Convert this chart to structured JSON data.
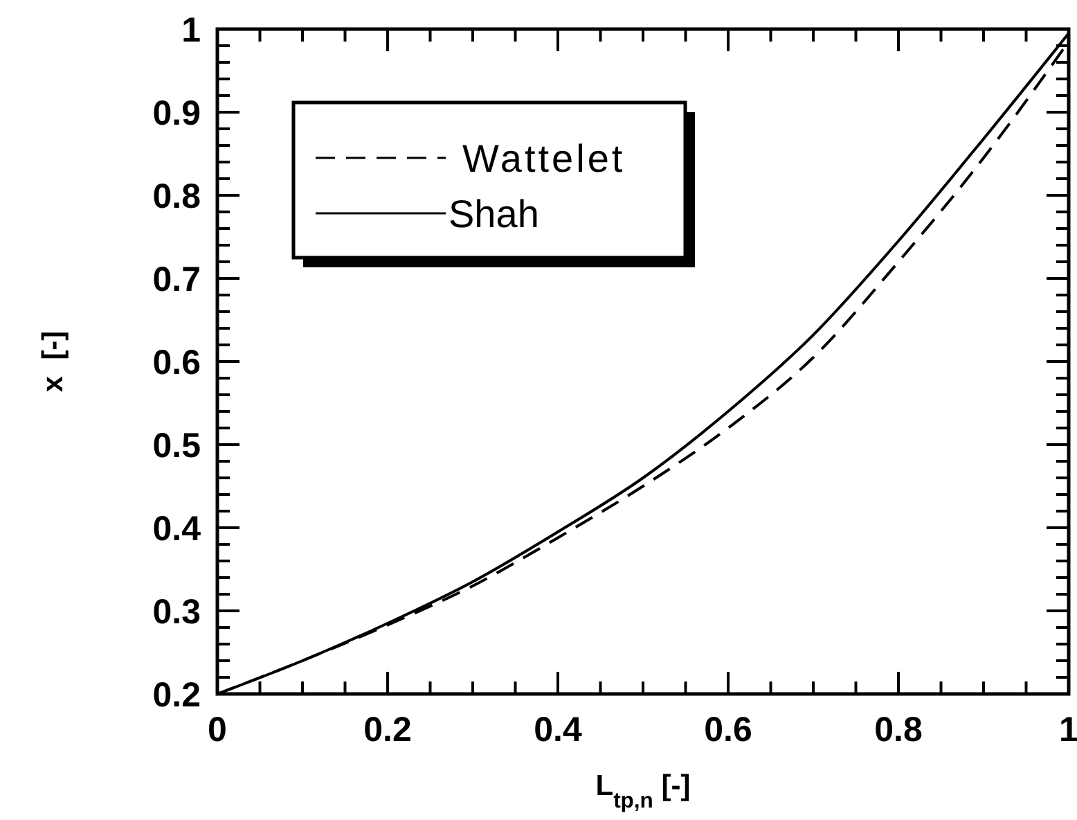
{
  "chart_data": {
    "type": "line",
    "xlabel": "L$_{tp,n}$ [-]",
    "ylabel": "x  [-]",
    "x": [
      0,
      0.1,
      0.2,
      0.3,
      0.4,
      0.5,
      0.6,
      0.7,
      0.8,
      0.9,
      1
    ],
    "series": [
      {
        "name": "Wattelet",
        "color": "#000000",
        "line_style": "dashed",
        "values": [
          0.2,
          0.24,
          0.283,
          0.33,
          0.388,
          0.45,
          0.52,
          0.605,
          0.72,
          0.845,
          0.985
        ]
      },
      {
        "name": "Shah",
        "color": "#000000",
        "line_style": "solid",
        "values": [
          0.2,
          0.24,
          0.285,
          0.335,
          0.395,
          0.46,
          0.54,
          0.632,
          0.745,
          0.868,
          0.995
        ]
      }
    ],
    "xlim": [
      0,
      1
    ],
    "ylim": [
      0.2,
      1
    ],
    "xticks": [
      0,
      {
        "value": 0.05,
        "label": null
      },
      {
        "value": 0.1,
        "label": null
      },
      {
        "value": 0.15,
        "label": null
      },
      0.2,
      {
        "value": 0.25,
        "label": null
      },
      {
        "value": 0.3,
        "label": null
      },
      {
        "value": 0.35,
        "label": null
      },
      0.4,
      {
        "value": 0.45,
        "label": null
      },
      {
        "value": 0.5,
        "label": null
      },
      {
        "value": 0.55,
        "label": null
      },
      0.6,
      {
        "value": 0.65,
        "label": null
      },
      {
        "value": 0.7,
        "label": null
      },
      {
        "value": 0.75,
        "label": null
      },
      0.8,
      {
        "value": 0.85,
        "label": null
      },
      {
        "value": 0.9,
        "label": null
      },
      {
        "value": 0.95,
        "label": null
      },
      1
    ],
    "yticks": [
      0.2,
      {
        "value": 0.22,
        "label": null
      },
      {
        "value": 0.24,
        "label": null
      },
      {
        "value": 0.26,
        "label": null
      },
      {
        "value": 0.28,
        "label": null
      },
      0.3,
      {
        "value": 0.32,
        "label": null
      },
      {
        "value": 0.34,
        "label": null
      },
      {
        "value": 0.36,
        "label": null
      },
      {
        "value": 0.38,
        "label": null
      },
      0.4,
      {
        "value": 0.42,
        "label": null
      },
      {
        "value": 0.44,
        "label": null
      },
      {
        "value": 0.46,
        "label": null
      },
      {
        "value": 0.48,
        "label": null
      },
      0.5,
      {
        "value": 0.52,
        "label": null
      },
      {
        "value": 0.54,
        "label": null
      },
      {
        "value": 0.56,
        "label": null
      },
      {
        "value": 0.58,
        "label": null
      },
      0.6,
      {
        "value": 0.62,
        "label": null
      },
      {
        "value": 0.64,
        "label": null
      },
      {
        "value": 0.66,
        "label": null
      },
      {
        "value": 0.68,
        "label": null
      },
      0.7,
      {
        "value": 0.72,
        "label": null
      },
      {
        "value": 0.74,
        "label": null
      },
      {
        "value": 0.76,
        "label": null
      },
      {
        "value": 0.78,
        "label": null
      },
      0.8,
      {
        "value": 0.82,
        "label": null
      },
      {
        "value": 0.84,
        "label": null
      },
      {
        "value": 0.86,
        "label": null
      },
      {
        "value": 0.88,
        "label": null
      },
      0.9,
      {
        "value": 0.92,
        "label": null
      },
      {
        "value": 0.94,
        "label": null
      },
      {
        "value": 0.96,
        "label": null
      },
      {
        "value": 0.98,
        "label": null
      },
      1
    ],
    "legend": "top left",
    "grid": false
  }
}
